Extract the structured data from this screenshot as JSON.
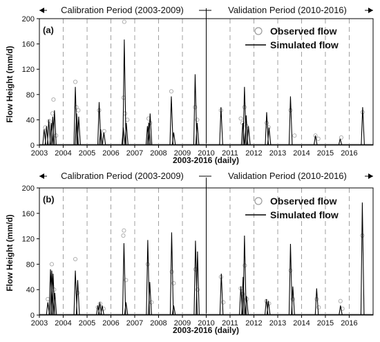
{
  "figure": {
    "x_axis_range": [
      "2003-01-01",
      "2017-01-01"
    ],
    "x_ticks": [
      "2003",
      "2004",
      "2005",
      "2006",
      "2007",
      "2008",
      "2009",
      "2010",
      "2011",
      "2012",
      "2013",
      "2014",
      "2015",
      "2016"
    ],
    "y_ticks": [
      "0",
      "40",
      "80",
      "120",
      "160",
      "200"
    ],
    "y_range": [
      0,
      200
    ],
    "year_dividers": [
      "2004-01-01",
      "2005-01-01",
      "2006-01-01",
      "2007-01-01",
      "2008-01-01",
      "2009-01-01",
      "2010-01-01",
      "2011-01-01",
      "2012-01-01",
      "2013-01-01",
      "2014-01-01",
      "2015-01-01",
      "2016-01-01"
    ],
    "period_split": "2010-01-01",
    "colors": {
      "observed": "#b0b0b0",
      "simulated": "#000000",
      "divider": "#888888",
      "axis": "#000000"
    }
  },
  "chart_data": [
    {
      "type": "line",
      "panel_label": "(a)",
      "calibration_label": "Calibration Period (2003-2009)",
      "validation_label": "Validation Period (2010-2016)",
      "xlabel": "2003-2016 (daily)",
      "ylabel": "Flow Height (mm/d)",
      "ylim": [
        0,
        200
      ],
      "legend": {
        "observed": "Observed flow",
        "simulated": "Simulated flow",
        "placement": "top-right"
      },
      "series": [
        {
          "name": "Simulated flow",
          "style": "line",
          "points": [
            [
              "2003-03-15",
              25
            ],
            [
              "2003-04-20",
              30
            ],
            [
              "2003-05-25",
              40
            ],
            [
              "2003-07-01",
              35
            ],
            [
              "2003-07-25",
              45
            ],
            [
              "2003-08-20",
              55
            ],
            [
              "2004-07-05",
              92
            ],
            [
              "2004-07-25",
              50
            ],
            [
              "2004-08-25",
              45
            ],
            [
              "2005-07-05",
              68
            ],
            [
              "2005-07-28",
              25
            ],
            [
              "2005-09-15",
              20
            ],
            [
              "2006-07-10",
              28
            ],
            [
              "2006-07-25",
              167
            ],
            [
              "2006-08-25",
              35
            ],
            [
              "2007-07-15",
              30
            ],
            [
              "2007-08-05",
              35
            ],
            [
              "2007-08-25",
              50
            ],
            [
              "2008-07-15",
              77
            ],
            [
              "2008-08-20",
              20
            ],
            [
              "2009-07-15",
              112
            ],
            [
              "2009-08-15",
              35
            ],
            [
              "2010-08-15",
              60
            ],
            [
              "2011-07-15",
              35
            ],
            [
              "2011-08-10",
              92
            ],
            [
              "2011-09-05",
              47
            ],
            [
              "2011-10-10",
              30
            ],
            [
              "2012-07-15",
              52
            ],
            [
              "2012-08-20",
              28
            ],
            [
              "2013-07-15",
              77
            ],
            [
              "2014-08-01",
              15
            ],
            [
              "2015-08-15",
              10
            ],
            [
              "2016-07-25",
              60
            ]
          ]
        },
        {
          "name": "Observed flow",
          "style": "markers",
          "points": [
            [
              "2003-04-01",
              28
            ],
            [
              "2003-06-01",
              38
            ],
            [
              "2003-07-20",
              50
            ],
            [
              "2003-08-05",
              72
            ],
            [
              "2003-09-15",
              15
            ],
            [
              "2004-07-05",
              100
            ],
            [
              "2004-07-20",
              60
            ],
            [
              "2004-08-20",
              55
            ],
            [
              "2005-07-05",
              55
            ],
            [
              "2005-09-20",
              22
            ],
            [
              "2006-07-25",
              195
            ],
            [
              "2006-07-15",
              75
            ],
            [
              "2006-08-05",
              50
            ],
            [
              "2006-09-10",
              40
            ],
            [
              "2007-08-01",
              42
            ],
            [
              "2007-08-25",
              35
            ],
            [
              "2008-07-15",
              85
            ],
            [
              "2009-07-15",
              60
            ],
            [
              "2009-08-15",
              40
            ],
            [
              "2010-08-15",
              55
            ],
            [
              "2011-06-15",
              42
            ],
            [
              "2011-07-10",
              35
            ],
            [
              "2011-08-10",
              60
            ],
            [
              "2011-09-10",
              30
            ],
            [
              "2012-07-15",
              35
            ],
            [
              "2012-08-15",
              28
            ],
            [
              "2013-07-15",
              55
            ],
            [
              "2013-09-15",
              15
            ],
            [
              "2014-08-01",
              15
            ],
            [
              "2014-09-15",
              10
            ],
            [
              "2015-09-01",
              12
            ],
            [
              "2016-07-25",
              52
            ]
          ]
        }
      ]
    },
    {
      "type": "line",
      "panel_label": "(b)",
      "calibration_label": "Calibration Period (2003-2009)",
      "validation_label": "Validation Period (2010-2016)",
      "xlabel": "2003-2016 (daily)",
      "ylabel": "Flow Height (mm/d)",
      "ylim": [
        0,
        200
      ],
      "legend": {
        "observed": "Observed flow",
        "simulated": "Simulated flow",
        "placement": "top-right"
      },
      "series": [
        {
          "name": "Simulated flow",
          "style": "line",
          "points": [
            [
              "2003-05-10",
              20
            ],
            [
              "2003-06-20",
              72
            ],
            [
              "2003-07-10",
              70
            ],
            [
              "2003-07-30",
              65
            ],
            [
              "2003-08-25",
              35
            ],
            [
              "2004-07-05",
              70
            ],
            [
              "2004-08-10",
              55
            ],
            [
              "2005-06-15",
              15
            ],
            [
              "2005-07-15",
              20
            ],
            [
              "2005-08-20",
              15
            ],
            [
              "2006-07-20",
              113
            ],
            [
              "2006-08-20",
              20
            ],
            [
              "2007-07-20",
              118
            ],
            [
              "2007-08-20",
              52
            ],
            [
              "2008-07-20",
              130
            ],
            [
              "2008-08-20",
              15
            ],
            [
              "2009-07-20",
              117
            ],
            [
              "2009-08-20",
              100
            ],
            [
              "2010-08-20",
              65
            ],
            [
              "2011-06-15",
              45
            ],
            [
              "2011-07-20",
              60
            ],
            [
              "2011-08-10",
              125
            ],
            [
              "2011-09-10",
              30
            ],
            [
              "2012-07-10",
              25
            ],
            [
              "2012-08-10",
              22
            ],
            [
              "2013-07-15",
              112
            ],
            [
              "2013-08-20",
              45
            ],
            [
              "2014-08-20",
              42
            ],
            [
              "2015-08-20",
              15
            ],
            [
              "2016-07-20",
              177
            ]
          ]
        },
        {
          "name": "Observed flow",
          "style": "markers",
          "points": [
            [
              "2003-05-10",
              25
            ],
            [
              "2003-07-10",
              80
            ],
            [
              "2003-08-15",
              40
            ],
            [
              "2004-07-05",
              88
            ],
            [
              "2004-08-10",
              35
            ],
            [
              "2005-06-15",
              12
            ],
            [
              "2005-07-20",
              18
            ],
            [
              "2005-09-10",
              10
            ],
            [
              "2006-07-20",
              133
            ],
            [
              "2006-07-10",
              125
            ],
            [
              "2006-08-20",
              55
            ],
            [
              "2007-07-20",
              80
            ],
            [
              "2007-09-15",
              20
            ],
            [
              "2008-07-20",
              68
            ],
            [
              "2008-08-20",
              50
            ],
            [
              "2009-07-20",
              72
            ],
            [
              "2009-08-20",
              40
            ],
            [
              "2010-08-15",
              60
            ],
            [
              "2010-09-20",
              20
            ],
            [
              "2011-06-15",
              42
            ],
            [
              "2011-07-15",
              33
            ],
            [
              "2011-08-15",
              78
            ],
            [
              "2011-09-15",
              25
            ],
            [
              "2012-07-10",
              22
            ],
            [
              "2012-08-20",
              18
            ],
            [
              "2013-07-15",
              70
            ],
            [
              "2013-08-20",
              25
            ],
            [
              "2014-08-20",
              25
            ],
            [
              "2014-09-20",
              12
            ],
            [
              "2015-08-20",
              22
            ],
            [
              "2015-09-20",
              10
            ],
            [
              "2016-07-20",
              125
            ]
          ]
        }
      ]
    }
  ]
}
